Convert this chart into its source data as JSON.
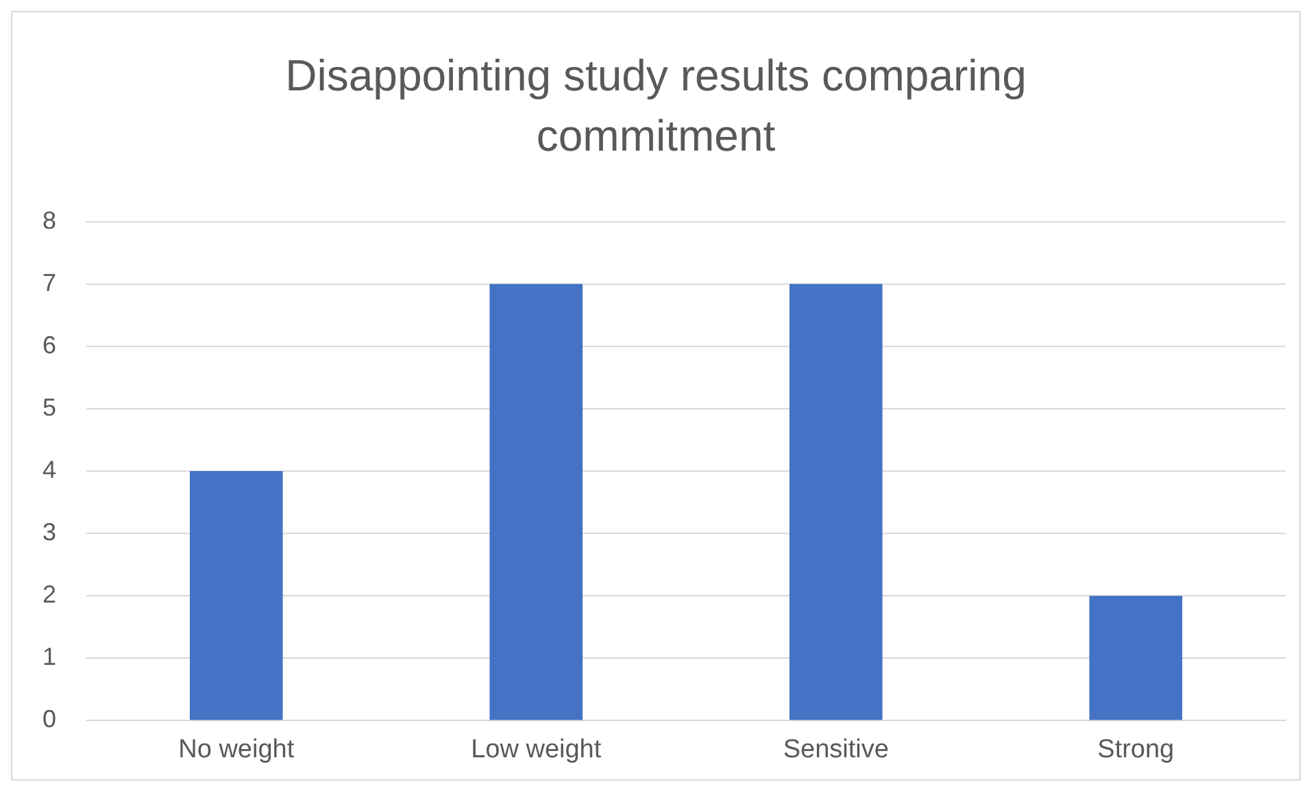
{
  "chart_data": {
    "type": "bar",
    "title": "Disappointing study results comparing commitment",
    "categories": [
      "No weight",
      "Low weight",
      "Sensitive",
      "Strong"
    ],
    "values": [
      4,
      7,
      7,
      2
    ],
    "color": "#4472c4",
    "ylim": [
      0,
      8
    ],
    "yticks": [
      0,
      1,
      2,
      3,
      4,
      5,
      6,
      7,
      8
    ],
    "grid": "y",
    "legend": false
  }
}
